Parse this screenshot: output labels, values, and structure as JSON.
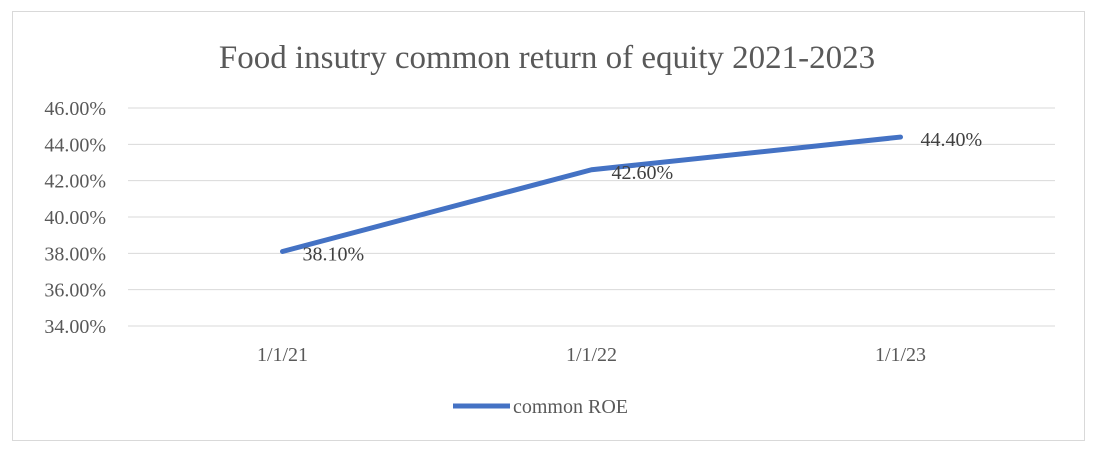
{
  "chart_data": {
    "type": "line",
    "title": "Food insutry common return of equity 2021-2023",
    "categories": [
      "1/1/21",
      "1/1/22",
      "1/1/23"
    ],
    "series": [
      {
        "name": "common ROE",
        "values": [
          38.1,
          42.6,
          44.4
        ],
        "color": "#4472C4"
      }
    ],
    "data_labels": [
      "38.10%",
      "42.60%",
      "44.40%"
    ],
    "y_ticks": [
      "34.00%",
      "36.00%",
      "38.00%",
      "40.00%",
      "42.00%",
      "44.00%",
      "46.00%"
    ],
    "ylim": [
      34,
      46
    ],
    "y_step": 2,
    "grid": true,
    "gridline_color": "#d9d9d9",
    "legend_position": "bottom",
    "xlabel": "",
    "ylabel": ""
  }
}
